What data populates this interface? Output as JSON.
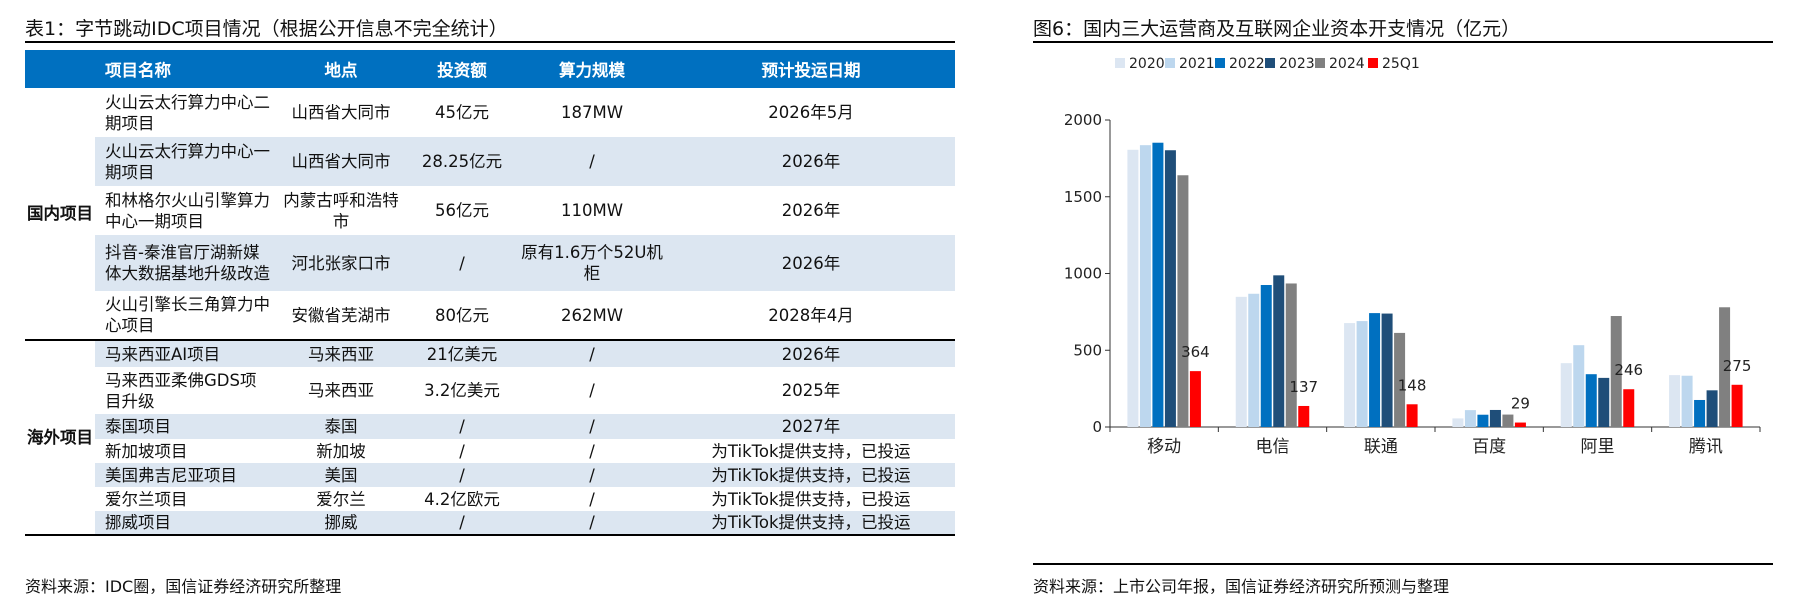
{
  "left_panel": {
    "title": "表1：字节跳动IDC项目情况（根据公开信息不完全统计）",
    "source": "资料来源：IDC圈，国信证券经济研究所整理",
    "headers": [
      "项目名称",
      "地点",
      "投资额",
      "算力规模",
      "预计投运日期"
    ],
    "groups": [
      {
        "label": "国内项目",
        "rows": [
          [
            "火山云太行算力中心二期项目",
            "山西省大同市",
            "45亿元",
            "187MW",
            "2026年5月"
          ],
          [
            "火山云太行算力中心一期项目",
            "山西省大同市",
            "28.25亿元",
            "/",
            "2026年"
          ],
          [
            "和林格尔火山引擎算力中心一期项目",
            "内蒙古呼和浩特市",
            "56亿元",
            "110MW",
            "2026年"
          ],
          [
            "抖音-秦淮官厅湖新媒体大数据基地升级改造",
            "河北张家口市",
            "/",
            "原有1.6万个52U机柜",
            "2026年"
          ],
          [
            "火山引擎长三角算力中心项目",
            "安徽省芜湖市",
            "80亿元",
            "262MW",
            "2028年4月"
          ]
        ]
      },
      {
        "label": "海外项目",
        "rows": [
          [
            "马来西亚AI项目",
            "马来西亚",
            "21亿美元",
            "/",
            "2026年"
          ],
          [
            "马来西亚柔佛GDS项目升级",
            "马来西亚",
            "3.2亿美元",
            "/",
            "2025年"
          ],
          [
            "泰国项目",
            "泰国",
            "/",
            "/",
            "2027年"
          ],
          [
            "新加坡项目",
            "新加坡",
            "/",
            "/",
            "为TikTok提供支持，已投运"
          ],
          [
            "美国弗吉尼亚项目",
            "美国",
            "/",
            "/",
            "为TikTok提供支持，已投运"
          ],
          [
            "爱尔兰项目",
            "爱尔兰",
            "4.2亿欧元",
            "/",
            "为TikTok提供支持，已投运"
          ],
          [
            "挪威项目",
            "挪威",
            "/",
            "/",
            "为TikTok提供支持，已投运"
          ]
        ]
      }
    ]
  },
  "right_panel": {
    "title": "图6：国内三大运营商及互联网企业资本开支情况（亿元）",
    "source": "资料来源：上市公司年报，国信证券经济研究所预测与整理"
  },
  "colors": {
    "header_blue": "#0070c0",
    "row_shade": "#dce6f1",
    "series": [
      "#dce6f2",
      "#bdd7ee",
      "#0070c0",
      "#1f4e79",
      "#808080",
      "#ff0000"
    ]
  },
  "chart_data": {
    "type": "bar",
    "categories": [
      "移动",
      "电信",
      "联通",
      "百度",
      "阿里",
      "腾讯"
    ],
    "series": [
      {
        "name": "2020",
        "values": [
          1806,
          848,
          677,
          56,
          416,
          338
        ]
      },
      {
        "name": "2021",
        "values": [
          1836,
          868,
          690,
          110,
          533,
          334
        ]
      },
      {
        "name": "2022",
        "values": [
          1852,
          925,
          742,
          80,
          344,
          176
        ]
      },
      {
        "name": "2023",
        "values": [
          1803,
          988,
          739,
          111,
          320,
          239
        ]
      },
      {
        "name": "2024",
        "values": [
          1640,
          935,
          613,
          81,
          723,
          780
        ]
      },
      {
        "name": "25Q1",
        "values": [
          364,
          137,
          148,
          29,
          246,
          275
        ]
      }
    ],
    "data_labels_series": "25Q1",
    "ylim": [
      0,
      2000
    ],
    "yticks": [
      0,
      500,
      1000,
      1500,
      2000
    ],
    "grid": false,
    "legend_position": "top"
  }
}
